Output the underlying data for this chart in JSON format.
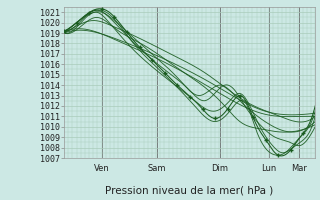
{
  "background_color": "#cce8e4",
  "plot_bg_color": "#cce8e4",
  "grid_color": "#aaccbb",
  "line_color": "#1a5c20",
  "ylim_low": 1007,
  "ylim_high": 1021.5,
  "yticks": [
    1007,
    1008,
    1009,
    1010,
    1011,
    1012,
    1013,
    1014,
    1015,
    1016,
    1017,
    1018,
    1019,
    1020,
    1021
  ],
  "xlabel": "Pression niveau de la mer( hPa )",
  "day_labels": [
    "Ven",
    "Sam",
    "Dim",
    "Lun",
    "Mar"
  ],
  "tick_fontsize": 6,
  "xlabel_fontsize": 7.5
}
